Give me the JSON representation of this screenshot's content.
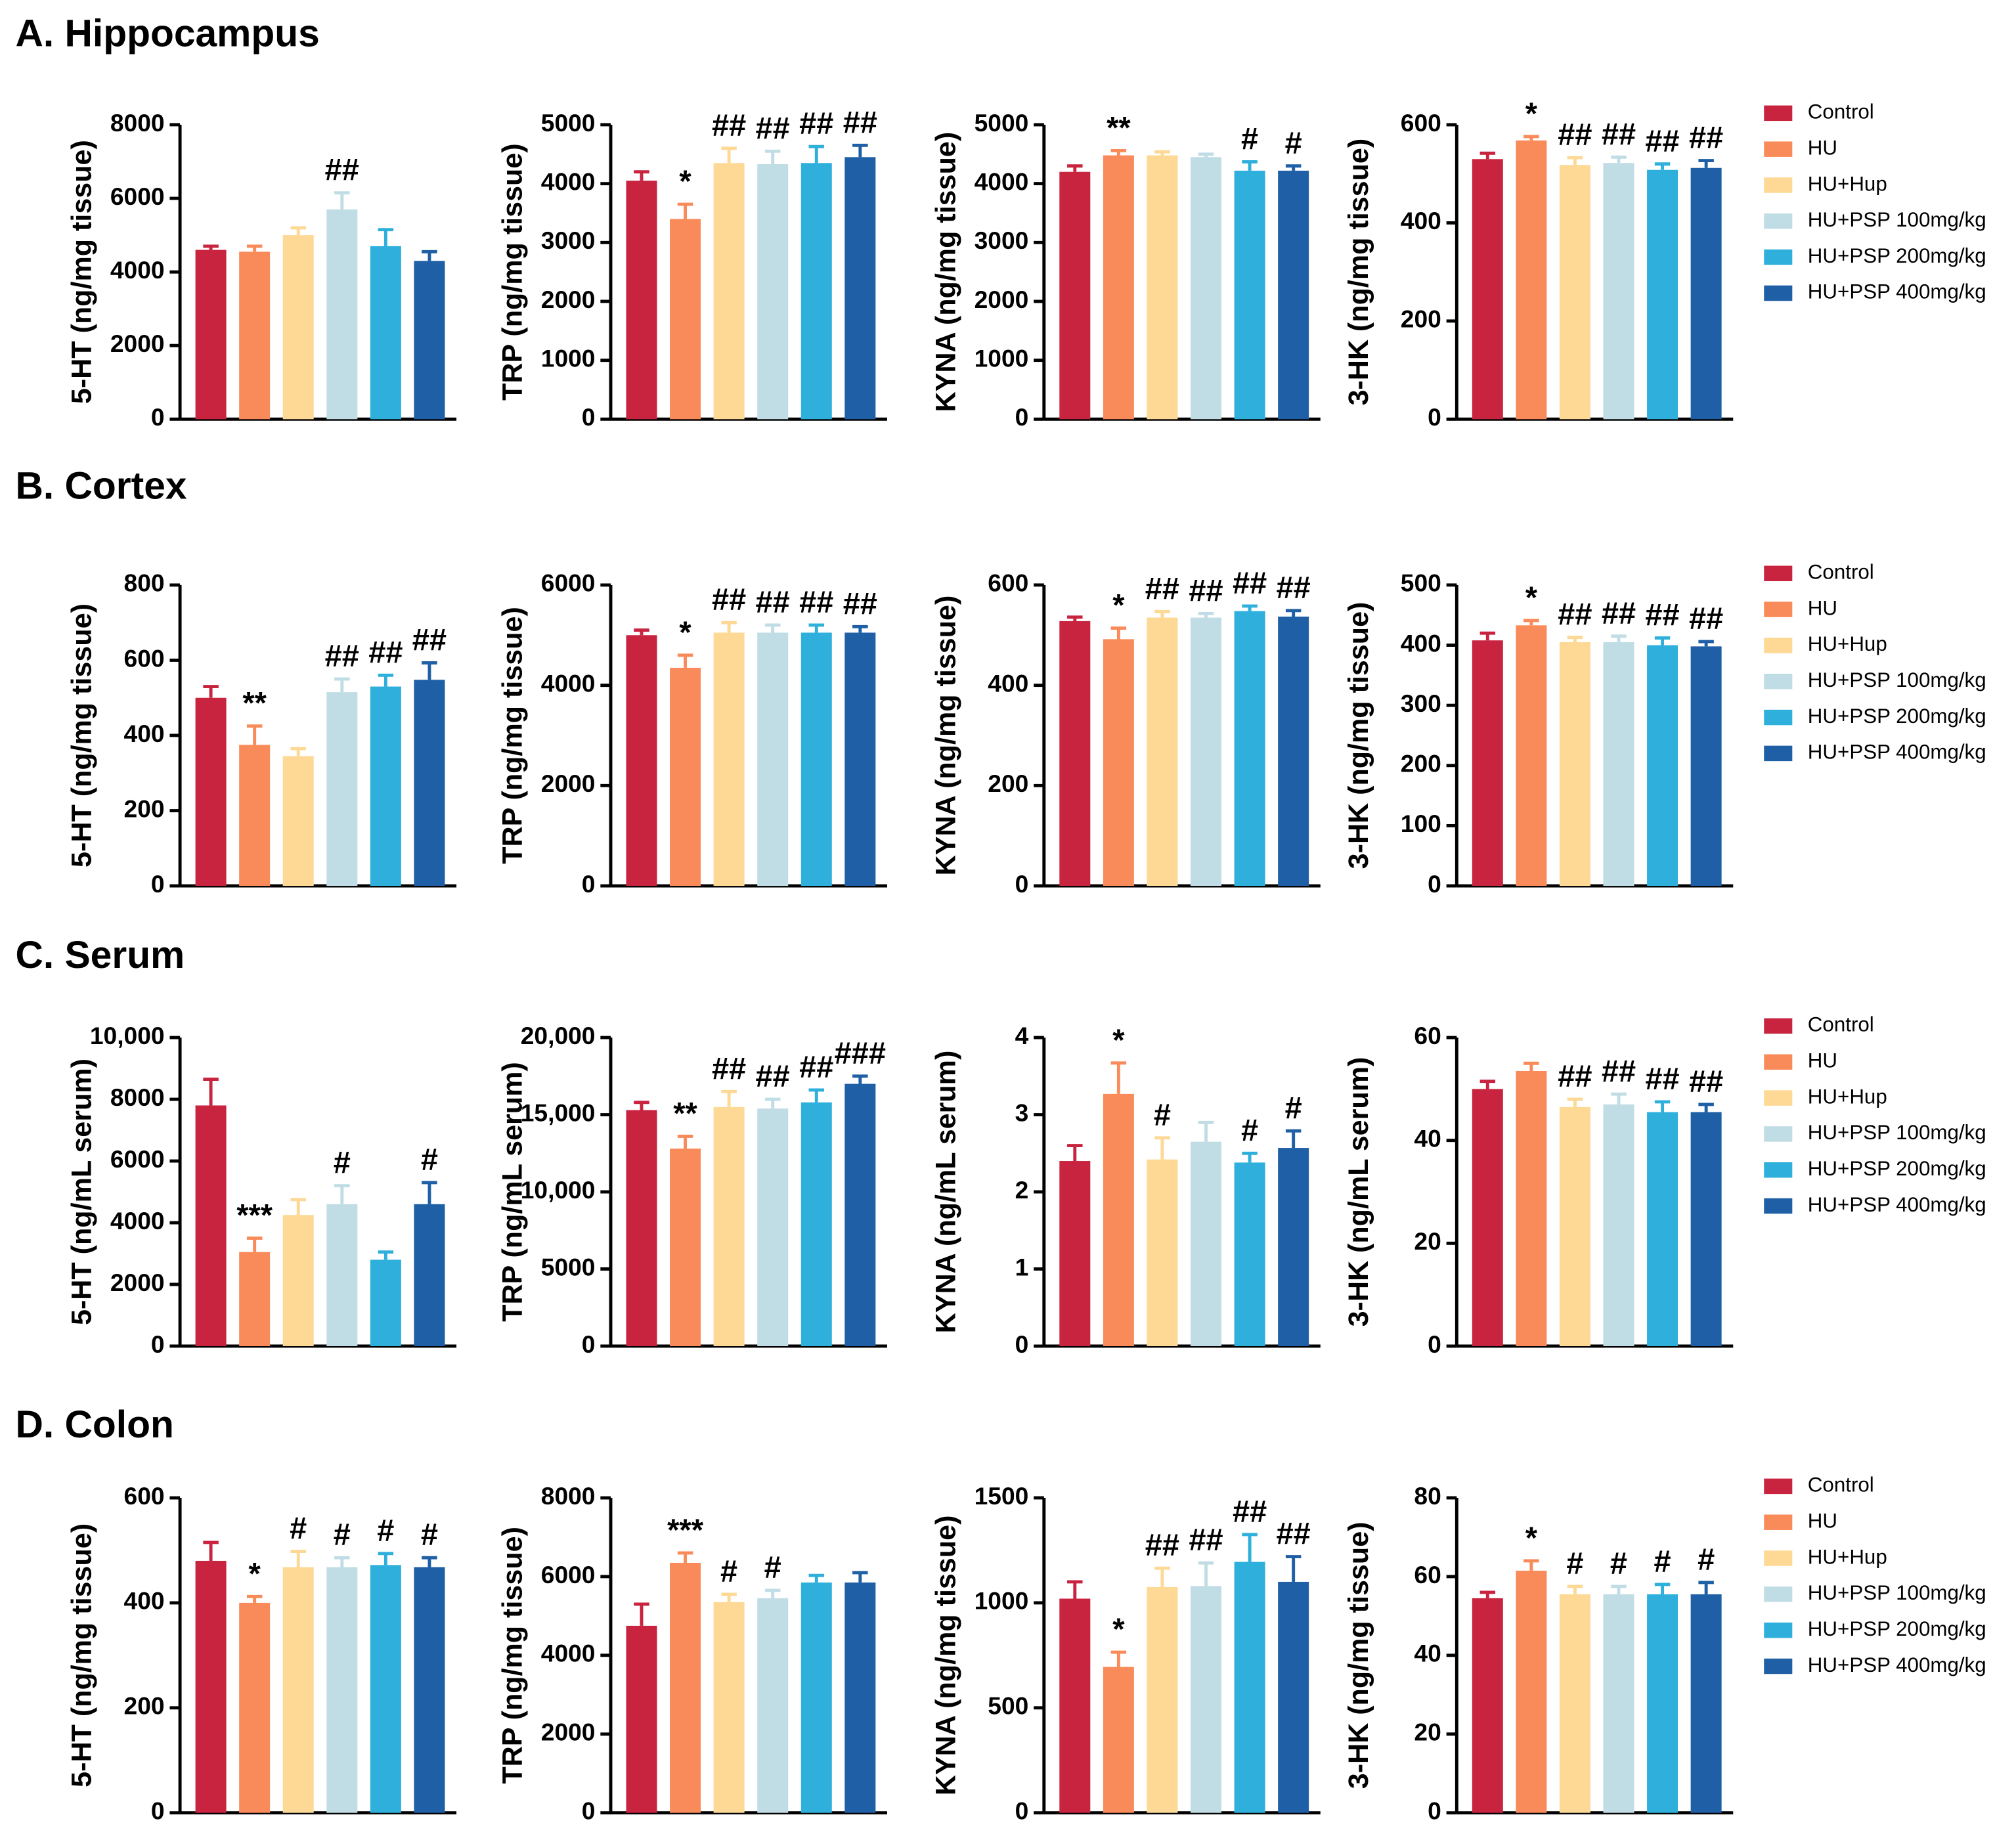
{
  "sections": [
    "A. Hippocampus",
    "B. Cortex",
    "C. Serum",
    "D. Colon"
  ],
  "legend": [
    {
      "name": "Control",
      "color": "#c8233f"
    },
    {
      "name": "HU",
      "color": "#f98b5a"
    },
    {
      "name": "HU+Hup",
      "color": "#fdd995"
    },
    {
      "name": "HU+PSP 100mg/kg",
      "color": "#c0dde5"
    },
    {
      "name": "HU+PSP 200mg/kg",
      "color": "#2fb0dc"
    },
    {
      "name": "HU+PSP 400mg/kg",
      "color": "#1f5fa6"
    }
  ],
  "chart_data": [
    {
      "type": "bar",
      "ylabel": "5-HT (ng/mg tissue)",
      "ylim": [
        0,
        8000
      ],
      "yticks": [
        0,
        2000,
        4000,
        6000,
        8000
      ],
      "values": [
        4600,
        4550,
        5000,
        5700,
        4700,
        4300
      ],
      "errors": [
        100,
        150,
        200,
        450,
        450,
        250
      ],
      "annotations": [
        null,
        null,
        null,
        "##",
        null,
        null
      ]
    },
    {
      "type": "bar",
      "ylabel": "TRP (ng/mg tissue)",
      "ylim": [
        0,
        5000
      ],
      "yticks": [
        0,
        1000,
        2000,
        3000,
        4000,
        5000
      ],
      "values": [
        4050,
        3400,
        4350,
        4330,
        4350,
        4450
      ],
      "errors": [
        150,
        250,
        250,
        220,
        280,
        200
      ],
      "annotations": [
        null,
        "*",
        "##",
        "##",
        "##",
        "##"
      ]
    },
    {
      "type": "bar",
      "ylabel": "KYNA (ng/mg tissue)",
      "ylim": [
        0,
        5000
      ],
      "yticks": [
        0,
        1000,
        2000,
        3000,
        4000,
        5000
      ],
      "values": [
        4200,
        4480,
        4480,
        4450,
        4220,
        4220
      ],
      "errors": [
        100,
        80,
        60,
        50,
        150,
        80
      ],
      "annotations": [
        null,
        "**",
        null,
        null,
        "#",
        "#"
      ]
    },
    {
      "type": "bar",
      "ylabel": "3-HK (ng/mg tissue)",
      "ylim": [
        0,
        600
      ],
      "yticks": [
        0,
        200,
        400,
        600
      ],
      "values": [
        530,
        568,
        518,
        522,
        508,
        512
      ],
      "errors": [
        12,
        8,
        15,
        12,
        12,
        15
      ],
      "annotations": [
        null,
        "*",
        "##",
        "##",
        "##",
        "##"
      ]
    },
    {
      "type": "bar",
      "ylabel": "5-HT (ng/mg tissue)",
      "ylim": [
        0,
        800
      ],
      "yticks": [
        0,
        200,
        400,
        600,
        800
      ],
      "values": [
        500,
        375,
        345,
        515,
        530,
        548
      ],
      "errors": [
        30,
        50,
        20,
        35,
        30,
        45
      ],
      "annotations": [
        null,
        "**",
        null,
        "##",
        "##",
        "##"
      ]
    },
    {
      "type": "bar",
      "ylabel": "TRP (ng/mg tissue)",
      "ylim": [
        0,
        6000
      ],
      "yticks": [
        0,
        2000,
        4000,
        6000
      ],
      "values": [
        5000,
        4350,
        5050,
        5050,
        5050,
        5050
      ],
      "errors": [
        100,
        250,
        200,
        150,
        150,
        120
      ],
      "annotations": [
        null,
        "*",
        "##",
        "##",
        "##",
        "##"
      ]
    },
    {
      "type": "bar",
      "ylabel": "KYNA (ng/mg tissue)",
      "ylim": [
        0,
        600
      ],
      "yticks": [
        0,
        200,
        400,
        600
      ],
      "values": [
        528,
        492,
        535,
        535,
        548,
        537
      ],
      "errors": [
        8,
        22,
        12,
        8,
        10,
        12
      ],
      "annotations": [
        null,
        "*",
        "##",
        "##",
        "##",
        "##"
      ]
    },
    {
      "type": "bar",
      "ylabel": "3-HK (ng/mg tissue)",
      "ylim": [
        0,
        500
      ],
      "yticks": [
        0,
        100,
        200,
        300,
        400,
        500
      ],
      "values": [
        408,
        433,
        405,
        405,
        400,
        398
      ],
      "errors": [
        12,
        8,
        8,
        10,
        12,
        8
      ],
      "annotations": [
        null,
        "*",
        "##",
        "##",
        "##",
        "##"
      ]
    },
    {
      "type": "bar",
      "ylabel": "5-HT (ng/mL serum)",
      "ylim": [
        0,
        10000
      ],
      "yticks": [
        0,
        2000,
        4000,
        6000,
        8000,
        {
          "value": 10000,
          "label": "10,000"
        }
      ],
      "values": [
        7800,
        3050,
        4250,
        4600,
        2800,
        4600
      ],
      "errors": [
        850,
        450,
        500,
        600,
        250,
        700
      ],
      "annotations": [
        null,
        "***",
        null,
        "#",
        null,
        "#"
      ]
    },
    {
      "type": "bar",
      "ylabel": "TRP (ng/mL serum)",
      "ylim": [
        0,
        20000
      ],
      "yticks": [
        0,
        5000,
        {
          "value": 10000,
          "label": "10,000"
        },
        {
          "value": 15000,
          "label": "15,000"
        },
        {
          "value": 20000,
          "label": "20,000"
        }
      ],
      "values": [
        15300,
        12800,
        15500,
        15400,
        15800,
        17000
      ],
      "errors": [
        500,
        800,
        1000,
        600,
        800,
        500
      ],
      "annotations": [
        null,
        "**",
        "##",
        "##",
        "##",
        "###"
      ]
    },
    {
      "type": "bar",
      "ylabel": "KYNA (ng/mL serum)",
      "ylim": [
        0,
        4
      ],
      "yticks": [
        0,
        1,
        2,
        3,
        4
      ],
      "values": [
        2.4,
        3.27,
        2.42,
        2.65,
        2.38,
        2.57
      ],
      "errors": [
        0.2,
        0.4,
        0.28,
        0.25,
        0.12,
        0.22
      ],
      "annotations": [
        null,
        "*",
        "#",
        null,
        "#",
        "#"
      ]
    },
    {
      "type": "bar",
      "ylabel": "3-HK (ng/mL serum)",
      "ylim": [
        0,
        60
      ],
      "yticks": [
        0,
        20,
        40,
        60
      ],
      "values": [
        50,
        53.5,
        46.5,
        47,
        45.5,
        45.5
      ],
      "errors": [
        1.5,
        1.5,
        1.5,
        2,
        2,
        1.5
      ],
      "annotations": [
        null,
        null,
        "##",
        "##",
        "##",
        "##"
      ]
    },
    {
      "type": "bar",
      "ylabel": "5-HT (ng/mg tissue)",
      "ylim": [
        0,
        600
      ],
      "yticks": [
        0,
        200,
        400,
        600
      ],
      "values": [
        480,
        400,
        468,
        468,
        472,
        468
      ],
      "errors": [
        35,
        12,
        30,
        18,
        22,
        18
      ],
      "annotations": [
        null,
        "*",
        "#",
        "#",
        "#",
        "#"
      ]
    },
    {
      "type": "bar",
      "ylabel": "TRP (ng/mg tissue)",
      "ylim": [
        0,
        8000
      ],
      "yticks": [
        0,
        2000,
        4000,
        6000,
        8000
      ],
      "values": [
        4750,
        6350,
        5350,
        5450,
        5850,
        5850
      ],
      "errors": [
        550,
        250,
        200,
        200,
        180,
        250
      ],
      "annotations": [
        null,
        "***",
        "#",
        "#",
        null,
        null
      ]
    },
    {
      "type": "bar",
      "ylabel": "KYNA (ng/mg tissue)",
      "ylim": [
        0,
        1500
      ],
      "yticks": [
        0,
        500,
        1000,
        1500
      ],
      "values": [
        1020,
        695,
        1075,
        1080,
        1195,
        1100
      ],
      "errors": [
        80,
        70,
        90,
        110,
        130,
        120
      ],
      "annotations": [
        null,
        "*",
        "##",
        "##",
        "##",
        "##"
      ]
    },
    {
      "type": "bar",
      "ylabel": "3-HK (ng/mg tissue)",
      "ylim": [
        0,
        80
      ],
      "yticks": [
        0,
        20,
        40,
        60,
        80
      ],
      "values": [
        54.5,
        61.5,
        55.5,
        55.5,
        55.5,
        55.5
      ],
      "errors": [
        1.5,
        2.5,
        2,
        2,
        2.5,
        3
      ],
      "annotations": [
        null,
        "*",
        "#",
        "#",
        "#",
        "#"
      ]
    }
  ]
}
